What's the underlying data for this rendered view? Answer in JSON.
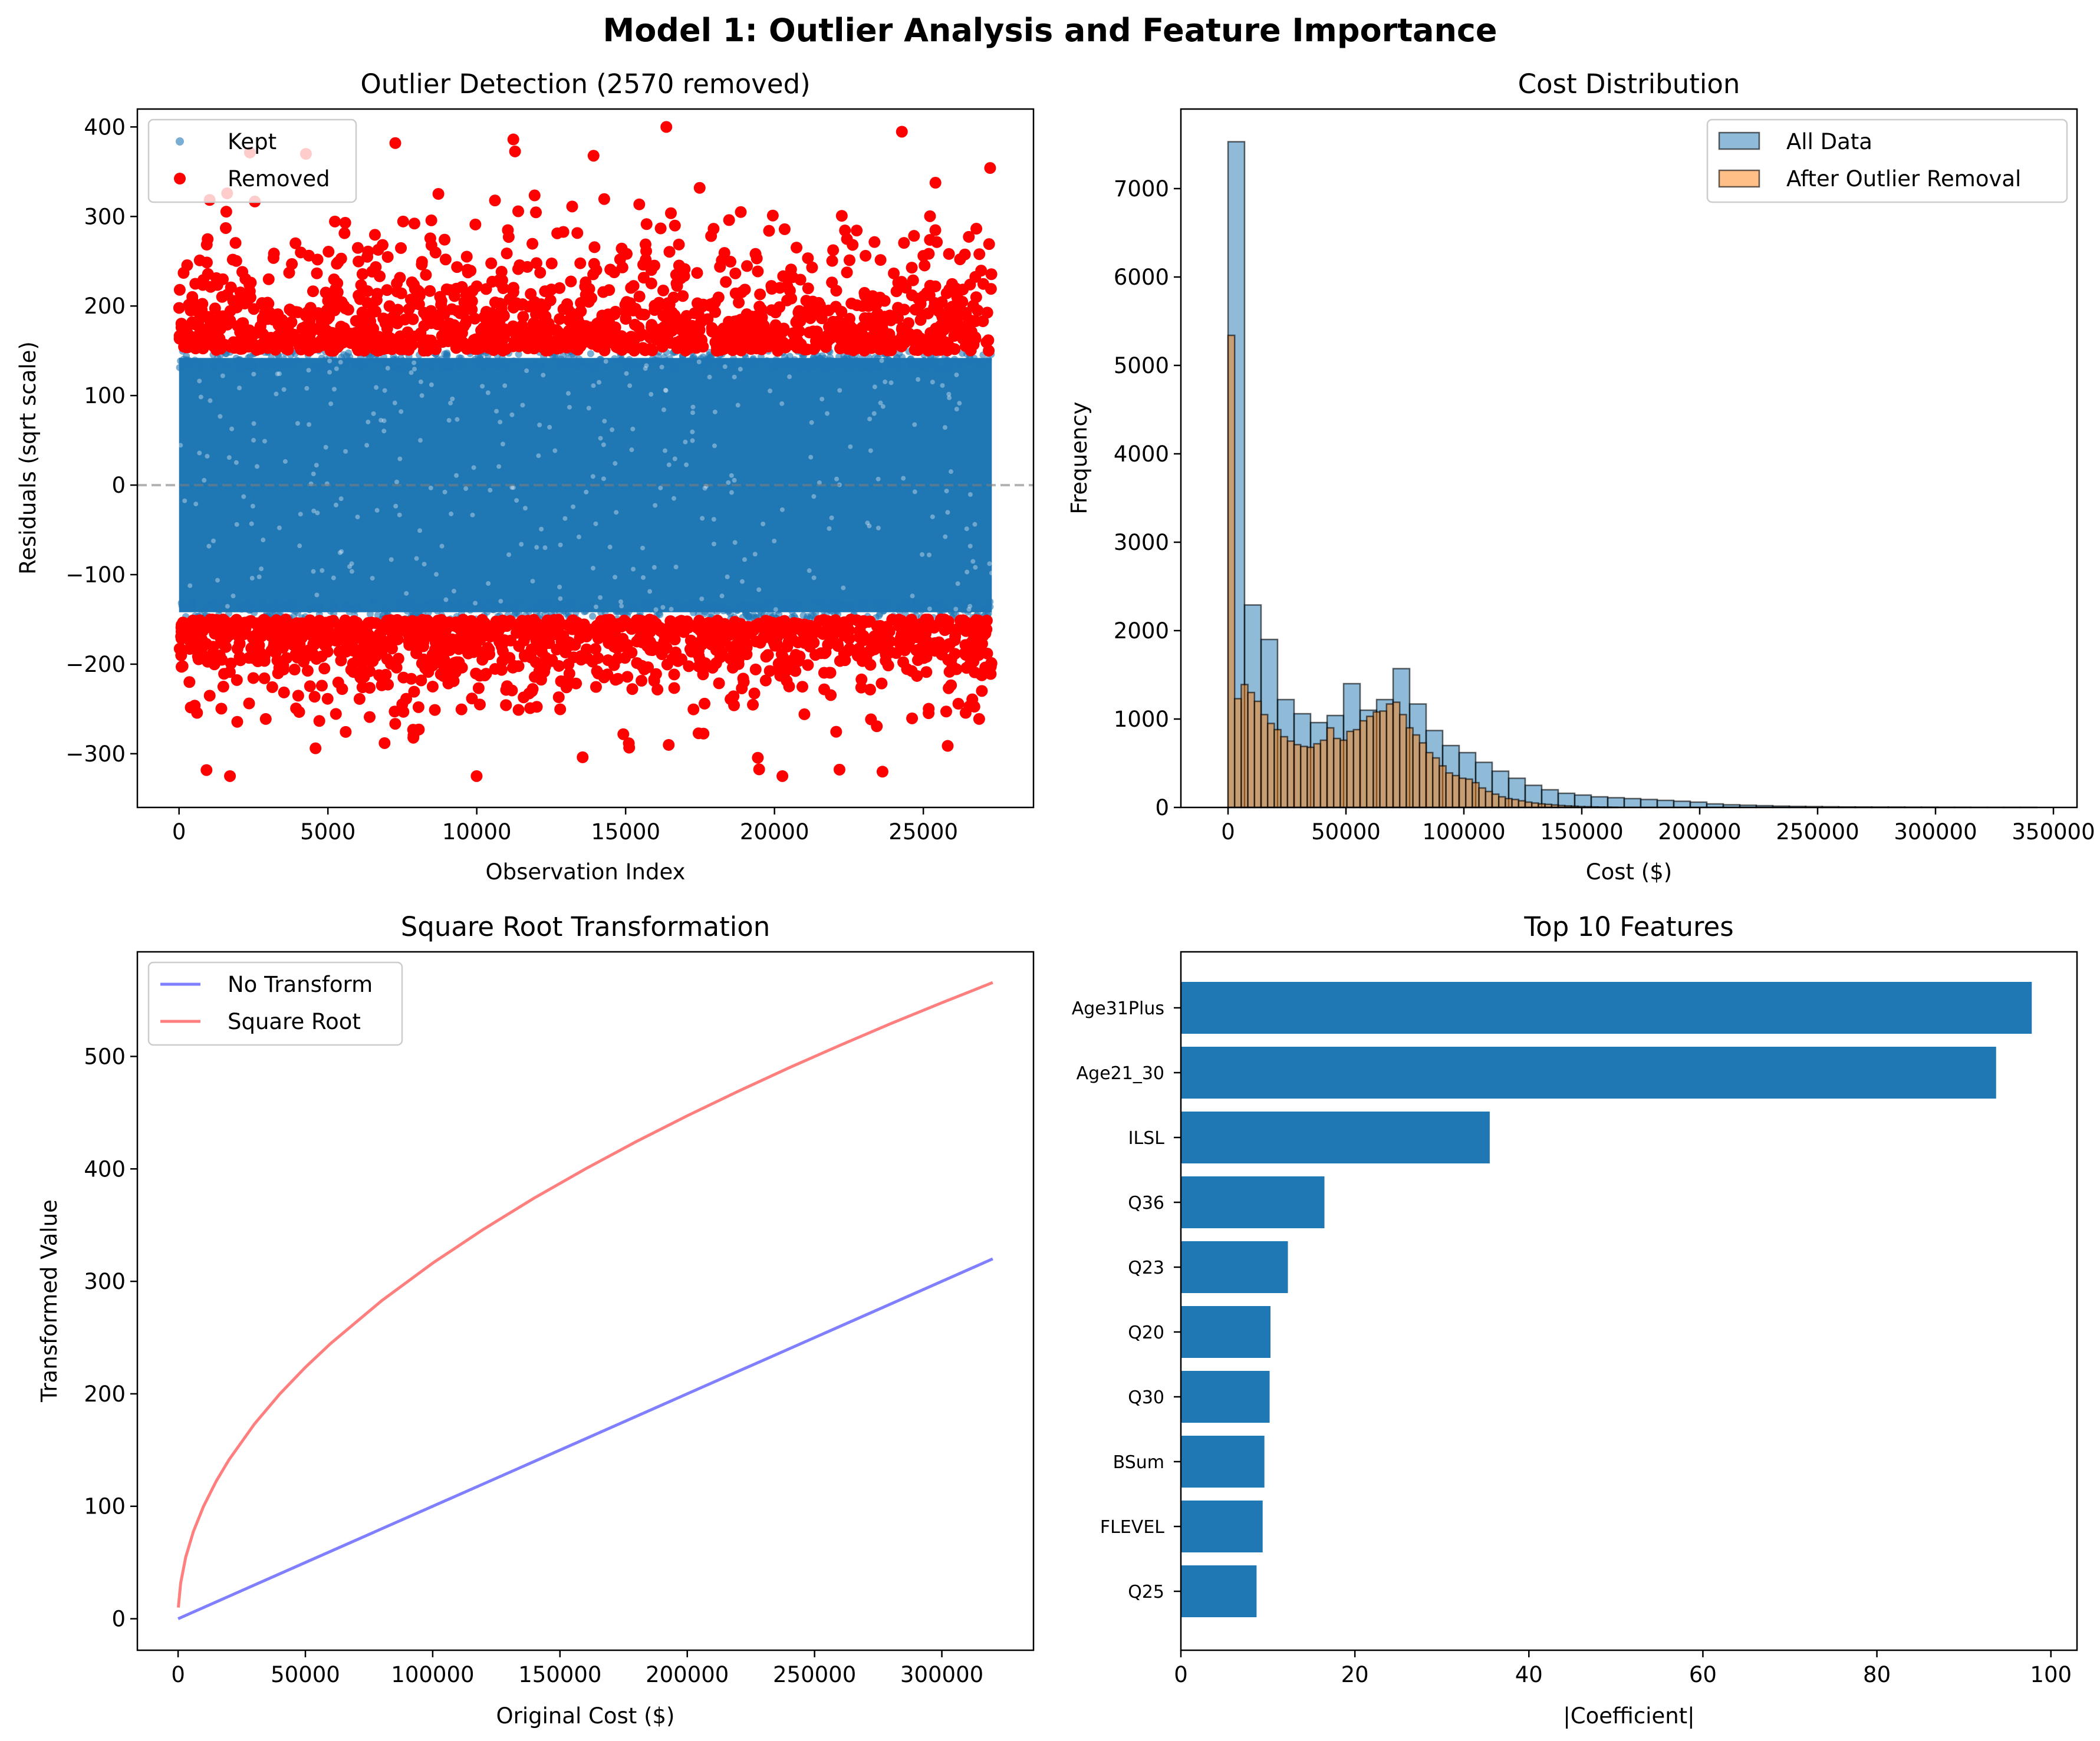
{
  "figure": {
    "title": "Model 1: Outlier Analysis and Feature Importance"
  },
  "chart_data": [
    {
      "type": "scatter",
      "title": "Outlier Detection (2570 removed)",
      "xlabel": "Observation Index",
      "ylabel": "Residuals (sqrt scale)",
      "xlim": [
        -1400,
        28700
      ],
      "ylim": [
        -360,
        420
      ],
      "xticks": [
        0,
        5000,
        10000,
        15000,
        20000,
        25000
      ],
      "yticks": [
        -300,
        -200,
        -100,
        0,
        100,
        200,
        300,
        400
      ],
      "n_observations": 27300,
      "reference_line": {
        "y": 0,
        "style": "dashed",
        "color": "#7f7f7f"
      },
      "legend": {
        "position": "top-left",
        "entries": [
          "Kept",
          "Removed"
        ]
      },
      "series": [
        {
          "name": "Kept",
          "color": "#1f77b4",
          "opacity": 0.6,
          "y_range": [
            -150,
            150
          ],
          "marker": "small circle"
        },
        {
          "name": "Removed",
          "color": "#ff0000",
          "y_range_upper": [
            150,
            400
          ],
          "y_range_lower": [
            -325,
            -150
          ],
          "count": 2570,
          "marker": "circle"
        }
      ]
    },
    {
      "type": "histogram",
      "title": "Cost Distribution",
      "xlabel": "Cost ($)",
      "ylabel": "Frequency",
      "xlim": [
        -20000,
        360000
      ],
      "ylim": [
        0,
        7900
      ],
      "xticks": [
        0,
        50000,
        100000,
        150000,
        200000,
        250000,
        300000,
        350000
      ],
      "yticks": [
        0,
        1000,
        2000,
        3000,
        4000,
        5000,
        6000,
        7000
      ],
      "legend": {
        "position": "top-right",
        "entries": [
          "All Data",
          "After Outlier Removal"
        ]
      },
      "series": [
        {
          "name": "All Data",
          "color": "#1f77b4",
          "opacity": 0.5,
          "bin_start": 0,
          "bin_width": 7000,
          "values": [
            7530,
            2290,
            1900,
            1220,
            1060,
            960,
            1040,
            1400,
            1100,
            1220,
            1570,
            1170,
            870,
            700,
            620,
            510,
            410,
            330,
            250,
            200,
            160,
            140,
            120,
            110,
            100,
            90,
            80,
            70,
            60,
            40,
            30,
            25,
            20,
            15,
            12,
            10,
            8,
            6,
            5,
            4,
            4,
            3,
            3,
            2,
            2,
            1,
            1,
            1,
            1
          ]
        },
        {
          "name": "After Outlier Removal",
          "color": "#ff7f0e",
          "opacity": 0.5,
          "bin_start": 0,
          "bin_width": 2800,
          "values": [
            5340,
            1230,
            1390,
            1300,
            1200,
            1050,
            950,
            880,
            800,
            750,
            710,
            690,
            680,
            720,
            760,
            900,
            780,
            760,
            860,
            880,
            980,
            1030,
            1080,
            1090,
            1170,
            1190,
            1050,
            900,
            820,
            730,
            620,
            560,
            470,
            390,
            360,
            330,
            320,
            280,
            220,
            180,
            150,
            120,
            100,
            90,
            75,
            60,
            50,
            40,
            35,
            28,
            22,
            18,
            14,
            10,
            8,
            6,
            4,
            3,
            2
          ]
        }
      ]
    },
    {
      "type": "line",
      "title": "Square Root Transformation",
      "xlabel": "Original Cost ($)",
      "ylabel": "Transformed Value",
      "xlim": [
        -16000,
        336000
      ],
      "ylim": [
        -28,
        593
      ],
      "xticks": [
        0,
        50000,
        100000,
        150000,
        200000,
        250000,
        300000
      ],
      "yticks": [
        0,
        100,
        200,
        300,
        400,
        500
      ],
      "legend": {
        "position": "top-left",
        "entries": [
          "No Transform",
          "Square Root"
        ]
      },
      "series": [
        {
          "name": "No Transform",
          "color": "#0000ff",
          "opacity": 0.5,
          "x": [
            0,
            40000,
            80000,
            120000,
            160000,
            200000,
            240000,
            280000,
            320000
          ],
          "y": [
            0,
            40,
            80,
            120,
            160,
            200,
            240,
            280,
            320
          ]
        },
        {
          "name": "Square Root",
          "color": "#ff0000",
          "opacity": 0.5,
          "x": [
            100,
            1000,
            3000,
            6000,
            10000,
            15000,
            20000,
            30000,
            40000,
            50000,
            60000,
            80000,
            100000,
            120000,
            140000,
            160000,
            180000,
            200000,
            220000,
            240000,
            260000,
            280000,
            300000,
            320000
          ],
          "y": [
            10,
            31.6,
            54.8,
            77.5,
            100,
            122.5,
            141.4,
            173.2,
            200,
            223.6,
            244.9,
            282.8,
            316.2,
            346.4,
            374.2,
            400,
            424.3,
            447.2,
            469,
            489.9,
            509.9,
            529.2,
            547.7,
            565.7
          ]
        }
      ]
    },
    {
      "type": "bar",
      "orientation": "horizontal",
      "title": "Top 10 Features",
      "xlabel": "|Coefficient|",
      "ylabel": "",
      "xlim": [
        0,
        103
      ],
      "xticks": [
        0,
        20,
        40,
        60,
        80,
        100
      ],
      "color": "#1f77b4",
      "categories": [
        "Age31Plus",
        "Age21_30",
        "ILSL",
        "Q36",
        "Q23",
        "Q20",
        "Q30",
        "BSum",
        "FLEVEL",
        "Q25"
      ],
      "values": [
        97.8,
        93.7,
        35.5,
        16.5,
        12.3,
        10.3,
        10.2,
        9.6,
        9.4,
        8.7
      ]
    }
  ]
}
